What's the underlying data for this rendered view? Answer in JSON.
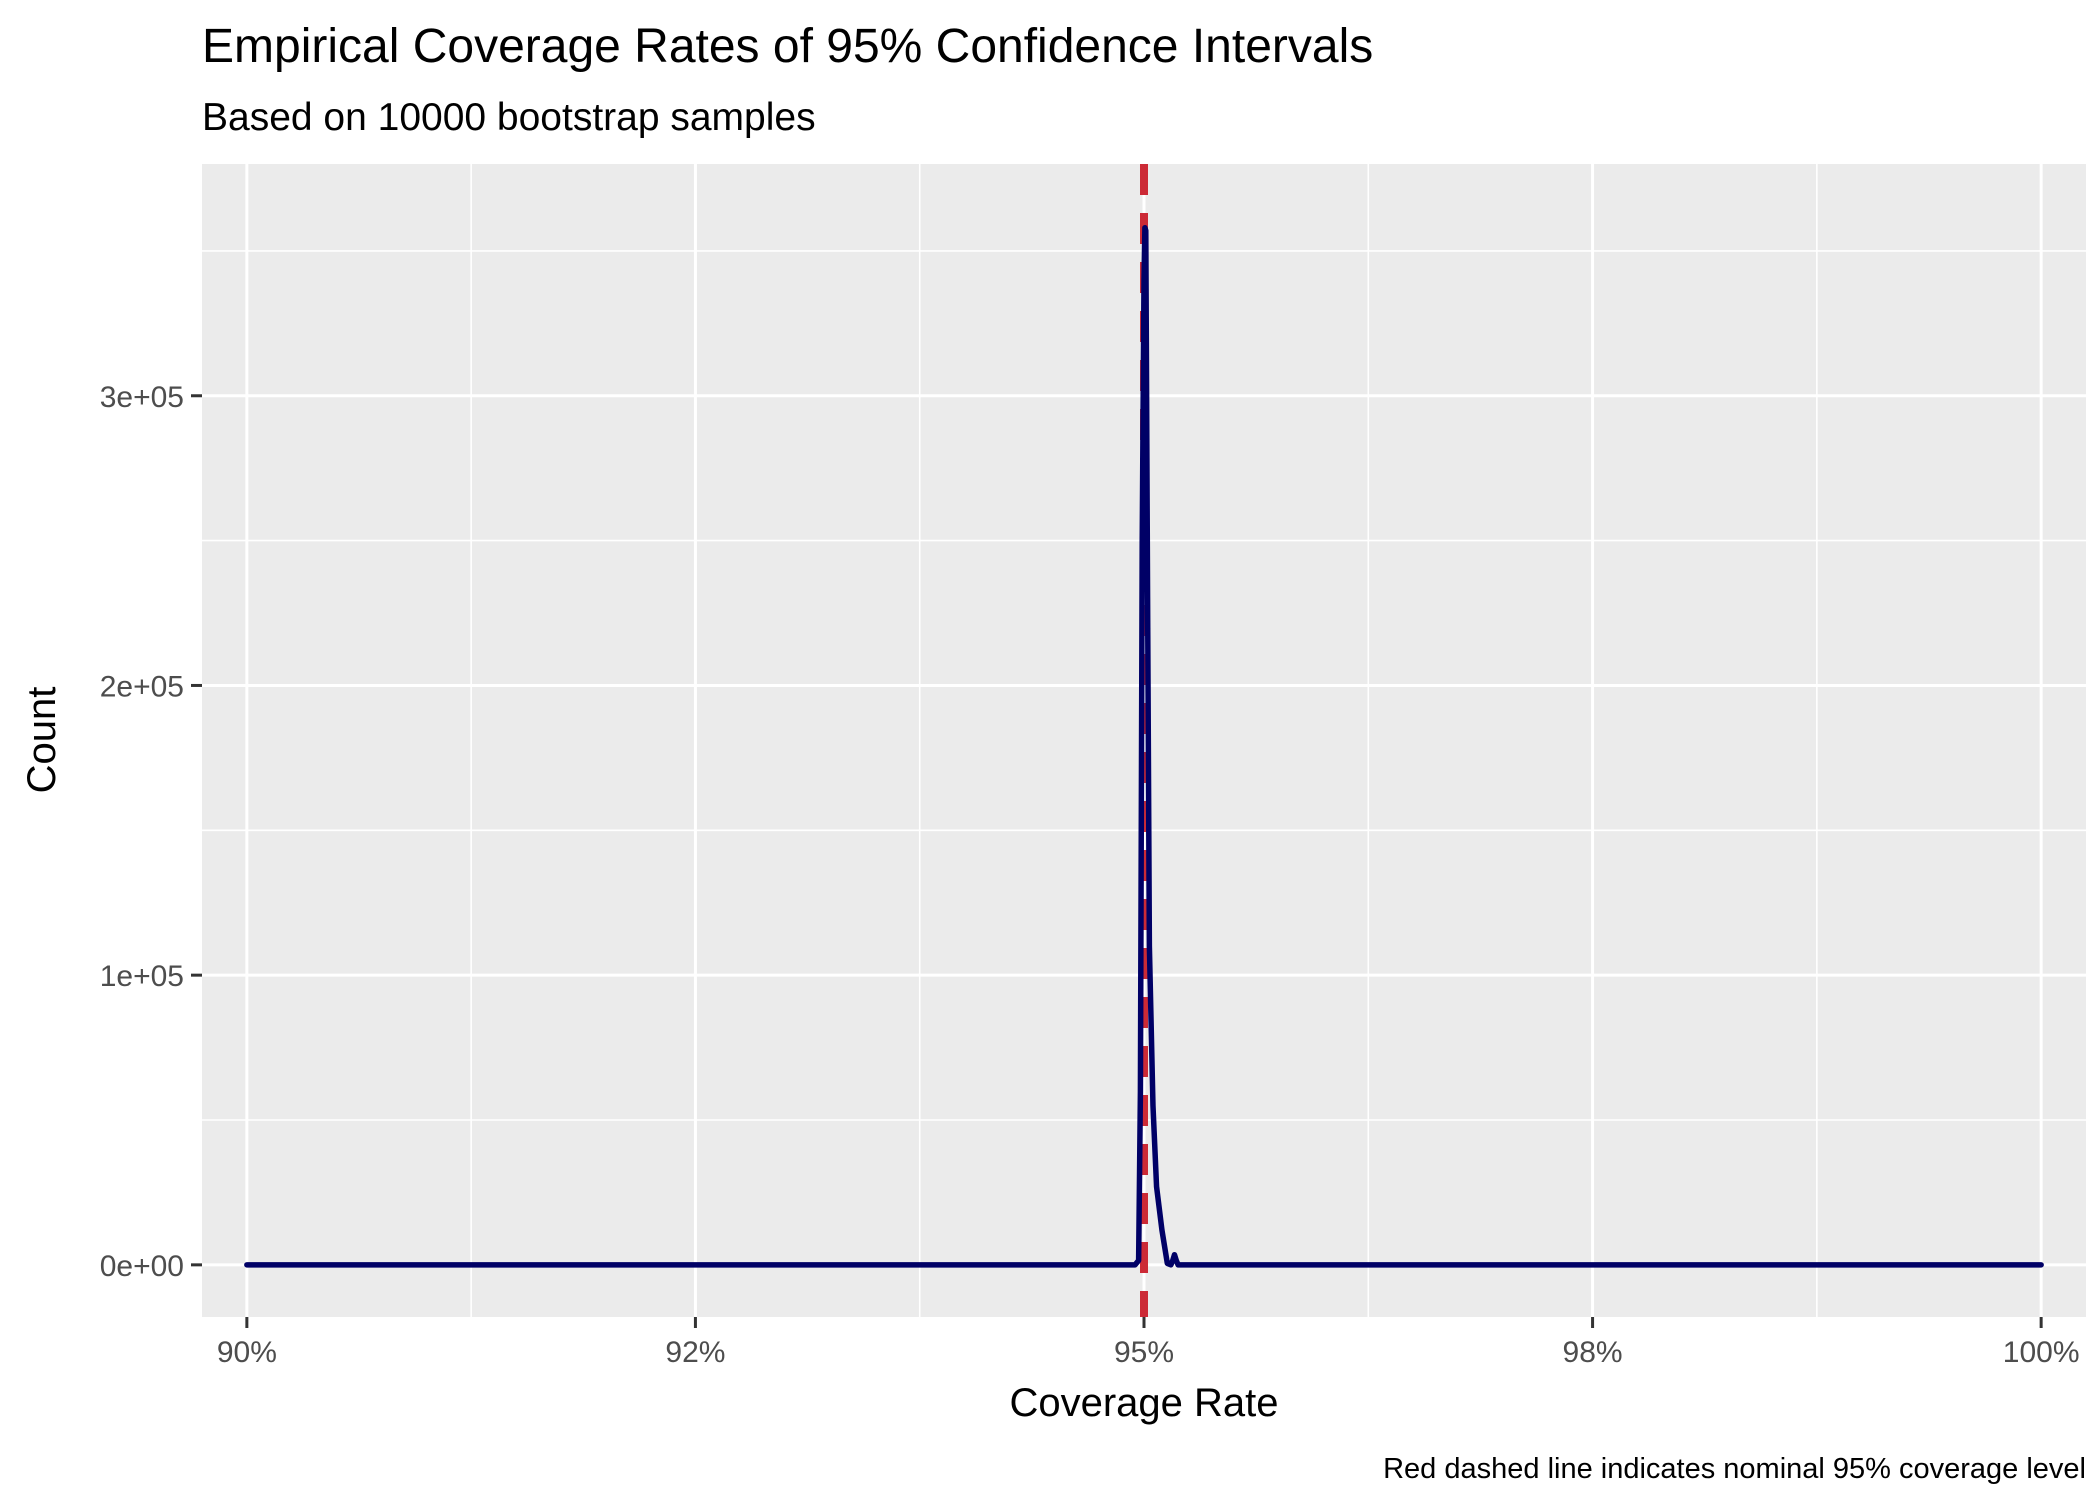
{
  "chart_data": {
    "type": "line",
    "title": "Empirical Coverage Rates of 95% Confidence Intervals",
    "subtitle": "Based on 10000 bootstrap samples",
    "xlabel": "Coverage Rate",
    "ylabel": "Count",
    "caption": "Red dashed line indicates nominal 95% coverage level",
    "xlim": [
      0.8975,
      1.0025
    ],
    "ylim": [
      -18000,
      380000
    ],
    "x_ticks": [
      0.9,
      0.925,
      0.95,
      0.975,
      1.0
    ],
    "x_tick_labels": [
      "90%",
      "92%",
      "95%",
      "98%",
      "100%"
    ],
    "x_minor_ticks": [
      0.9125,
      0.9375,
      0.9625,
      0.9875
    ],
    "y_ticks": [
      0,
      100000,
      200000,
      300000
    ],
    "y_tick_labels": [
      "0e+00",
      "1e+05",
      "2e+05",
      "3e+05"
    ],
    "y_minor_ticks": [
      50000,
      150000,
      250000,
      350000
    ],
    "grid": true,
    "reference_line": {
      "x": 0.95,
      "color": "#CC2A36",
      "style": "dashed"
    },
    "series": [
      {
        "color": "#000066",
        "points": [
          [
            0.9,
            0
          ],
          [
            0.9495,
            0
          ],
          [
            0.9497,
            1500
          ],
          [
            0.9498,
            60000
          ],
          [
            0.9499,
            250000
          ],
          [
            0.95,
            340000
          ],
          [
            0.95005,
            358000
          ],
          [
            0.9501,
            357000
          ],
          [
            0.9502,
            230000
          ],
          [
            0.9503,
            110000
          ],
          [
            0.9505,
            55000
          ],
          [
            0.9507,
            27000
          ],
          [
            0.951,
            12000
          ],
          [
            0.9513,
            500
          ],
          [
            0.9515,
            0
          ],
          [
            0.9516,
            1500
          ],
          [
            0.9517,
            3500
          ],
          [
            0.9518,
            1500
          ],
          [
            0.9519,
            0
          ],
          [
            1.0,
            0
          ]
        ]
      }
    ]
  }
}
